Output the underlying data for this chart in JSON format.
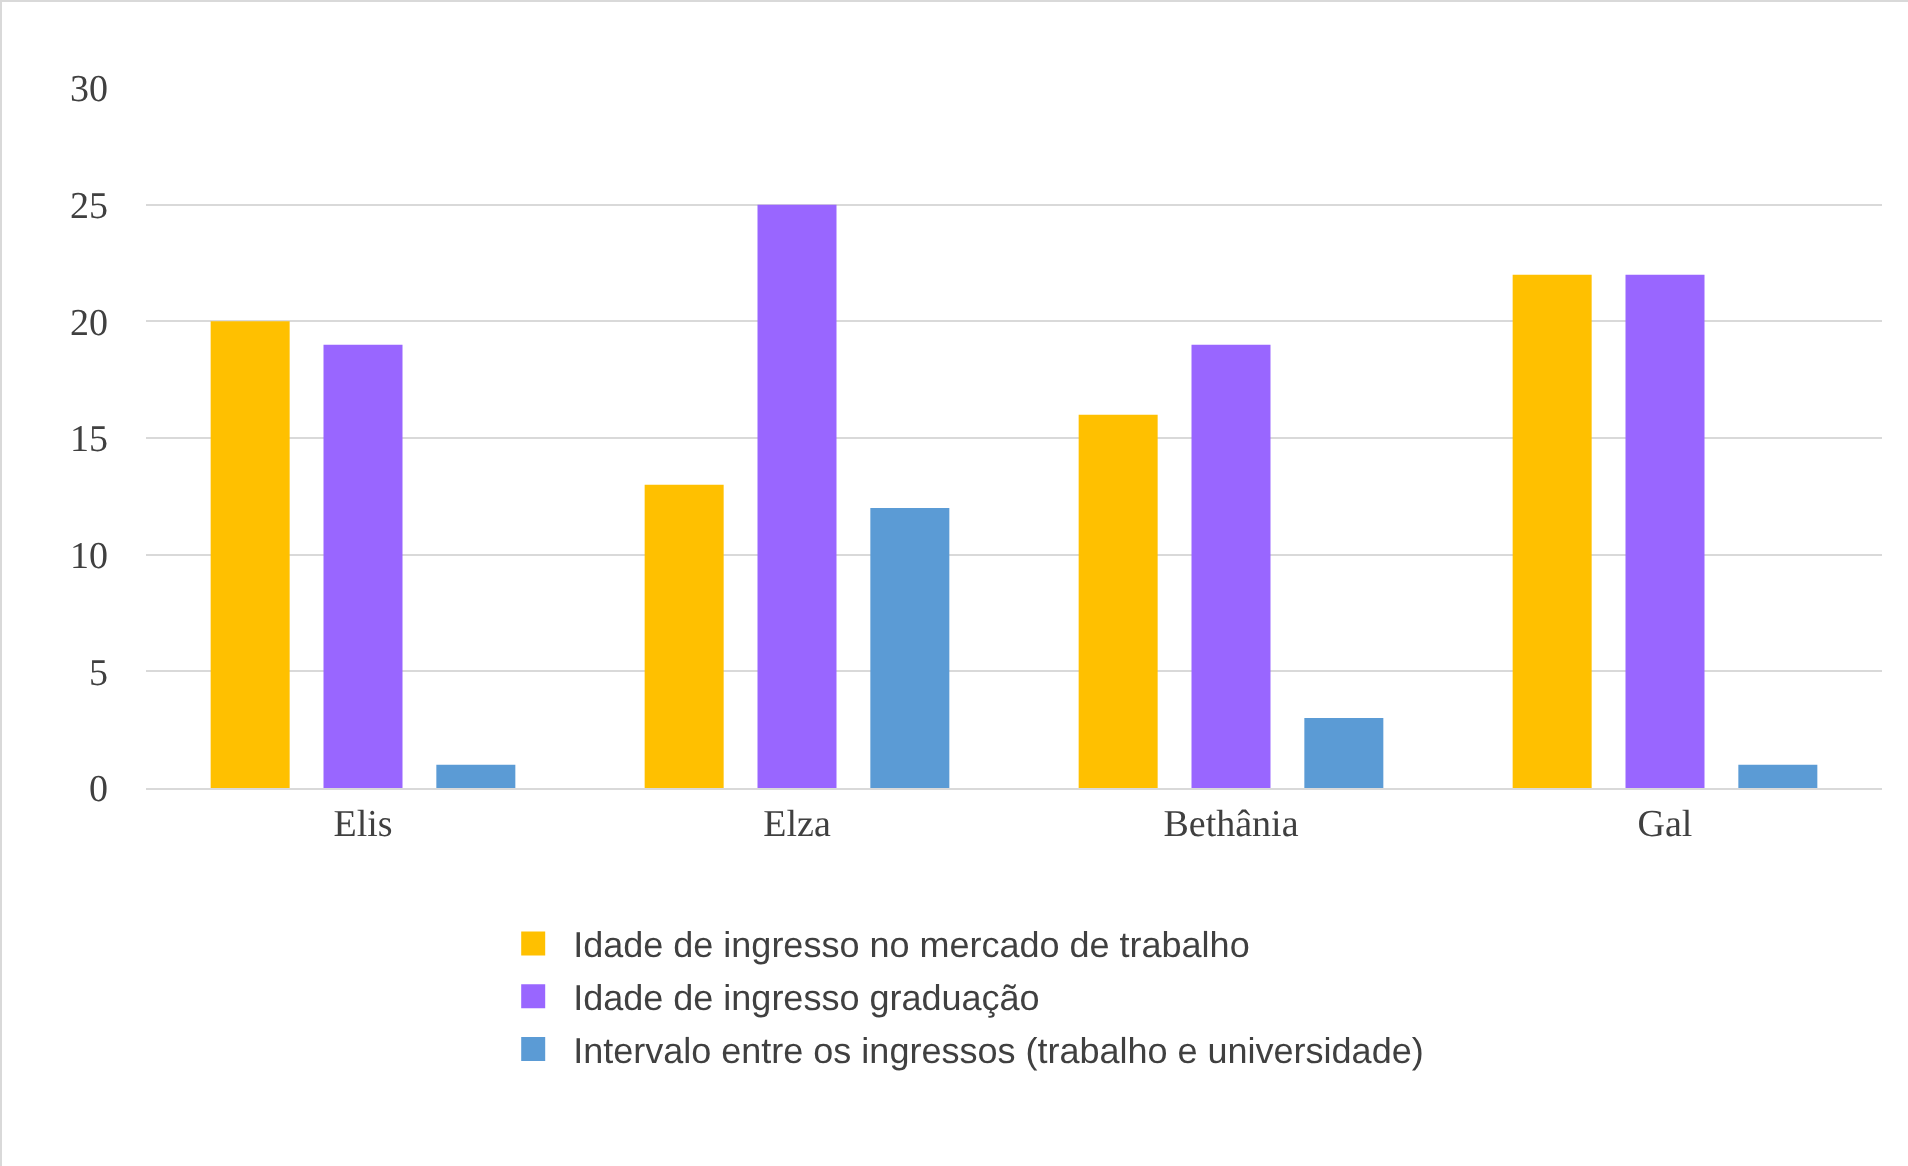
{
  "chart_data": {
    "type": "bar",
    "categories": [
      "Elis",
      "Elza",
      "Bethânia",
      "Gal"
    ],
    "series": [
      {
        "name": "Idade de ingresso no mercado de trabalho",
        "color": "#ffc000",
        "values": [
          20,
          13,
          16,
          22
        ]
      },
      {
        "name": "Idade de ingresso graduação",
        "color": "#9966ff",
        "values": [
          19,
          25,
          19,
          22
        ]
      },
      {
        "name": "Intervalo entre os ingressos (trabalho e universidade)",
        "color": "#5b9bd5",
        "values": [
          1,
          12,
          3,
          1
        ]
      }
    ],
    "ylim": [
      0,
      30
    ],
    "yticks": [
      0,
      5,
      10,
      15,
      20,
      25,
      30
    ],
    "grid": "y",
    "legend": "bottom"
  }
}
